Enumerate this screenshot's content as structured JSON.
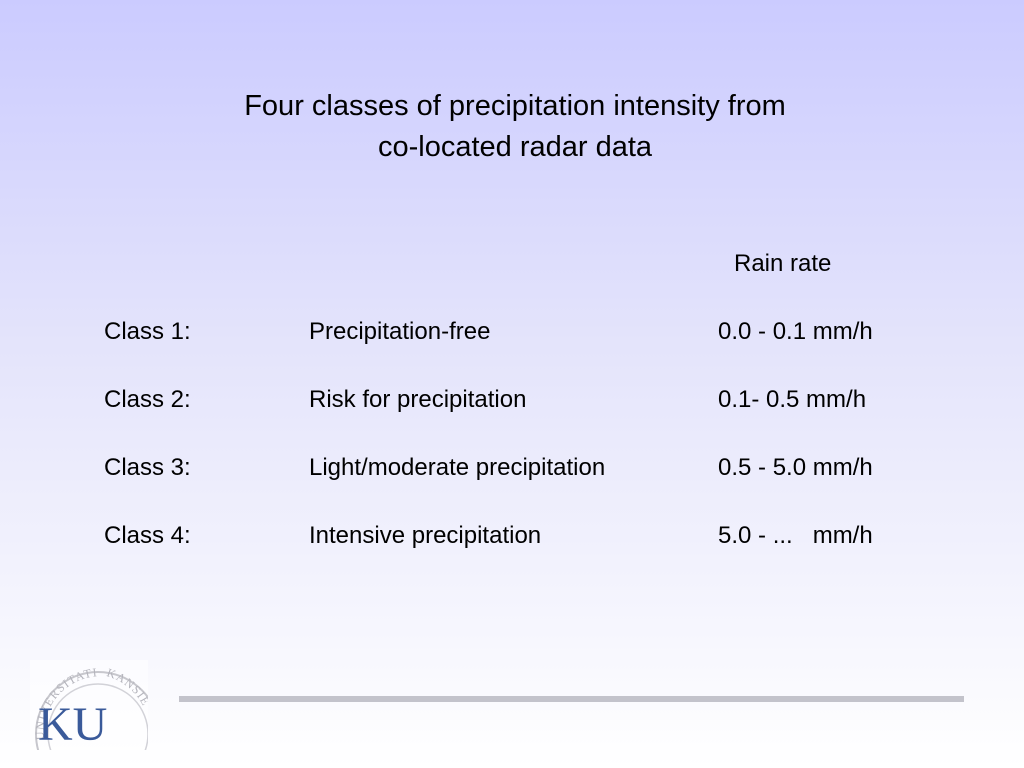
{
  "slide": {
    "title_line1": "Four classes of precipitation intensity from",
    "title_line2": "co-located radar data",
    "rate_header": "Rain rate",
    "rows": [
      {
        "cls": "Class 1:",
        "desc": "Precipitation-free",
        "rate": "0.0 - 0.1 mm/h"
      },
      {
        "cls": "Class 2:",
        "desc": "Risk for precipitation",
        "rate": "0.1- 0.5 mm/h"
      },
      {
        "cls": "Class 3:",
        "desc": "Light/moderate precipitation",
        "rate": "0.5 - 5.0 mm/h"
      },
      {
        "cls": "Class 4:",
        "desc": "Intensive precipitation",
        "rate": "5.0 - ...   mm/h"
      }
    ]
  },
  "logo": {
    "initials": "KU",
    "seal_text_left": "UNIVERSITATIS",
    "seal_text_right": "KANSIE"
  },
  "colors": {
    "background_top": "#cbcbff",
    "background_bottom": "#ffffff",
    "divider": "#c3c3cb",
    "logo_blue": "#3a5a9a"
  }
}
